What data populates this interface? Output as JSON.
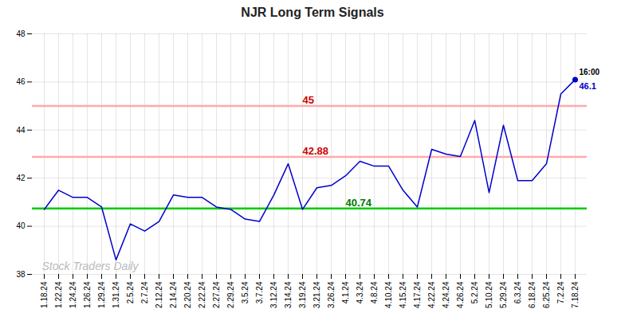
{
  "chart_data": {
    "type": "line",
    "title": "NJR Long Term Signals",
    "categories": [
      "1.18.24",
      "1.22.24",
      "1.24.24",
      "1.26.24",
      "1.29.24",
      "1.31.24",
      "2.5.24",
      "2.7.24",
      "2.12.24",
      "2.14.24",
      "2.20.24",
      "2.22.24",
      "2.27.24",
      "2.29.24",
      "3.5.24",
      "3.7.24",
      "3.12.24",
      "3.14.24",
      "3.19.24",
      "3.21.24",
      "3.26.24",
      "4.1.24",
      "4.3.24",
      "4.8.24",
      "4.10.24",
      "4.15.24",
      "4.17.24",
      "4.22.24",
      "4.24.24",
      "4.26.24",
      "5.2.24",
      "5.10.24",
      "5.29.24",
      "6.3.24",
      "6.18.24",
      "6.25.24",
      "7.2.24",
      "7.18.24"
    ],
    "values": [
      40.7,
      41.5,
      41.2,
      41.2,
      40.8,
      38.6,
      40.1,
      39.8,
      40.2,
      41.3,
      41.2,
      41.2,
      40.8,
      40.7,
      40.3,
      40.2,
      41.3,
      42.6,
      40.7,
      41.6,
      41.7,
      42.1,
      42.7,
      42.5,
      42.5,
      41.5,
      40.8,
      43.2,
      43.0,
      42.9,
      44.4,
      41.4,
      44.2,
      41.9,
      41.9,
      42.6,
      45.5,
      46.1
    ],
    "color": "#0000cc",
    "ylim": [
      38,
      48
    ],
    "yticks": [
      38,
      40,
      42,
      44,
      46,
      48
    ],
    "grid": true,
    "hlines": [
      {
        "value": 45.0,
        "label": "45",
        "color": "#ffaaaa",
        "label_color": "#cc0000"
      },
      {
        "value": 42.88,
        "label": "42.88",
        "color": "#ffaaaa",
        "label_color": "#cc0000"
      },
      {
        "value": 40.74,
        "label": "40.74",
        "color": "#00cc00",
        "label_color": "#007700"
      }
    ],
    "last_point": {
      "marker": "circle",
      "color": "#0000cc",
      "label": "16:00",
      "label_color": "#000000",
      "value_label": "46.1",
      "value_label_color": "#0000cc"
    },
    "watermark": {
      "text": "Stock Traders Daily",
      "color": "#bbbbbb"
    }
  }
}
